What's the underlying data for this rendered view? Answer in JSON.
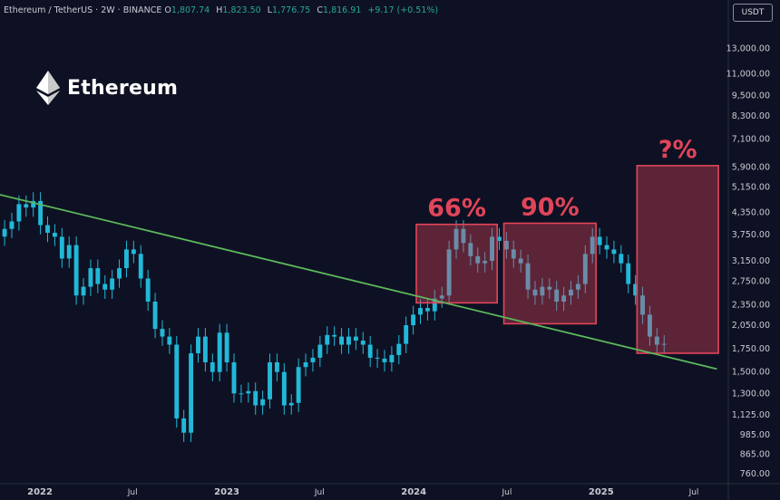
{
  "header": {
    "symbol": "Ethereum / TetherUS · 2W · BINANCE",
    "open_label": "O",
    "open": "1,807.74",
    "high_label": "H",
    "high": "1,823.50",
    "low_label": "L",
    "low": "1,776.75",
    "close_label": "C",
    "close": "1,816.91",
    "change": "+9.17 (+0.51%)"
  },
  "currency_button": "USDT",
  "brand": {
    "name": "Ethereum",
    "icon": "ethereum-logo-icon"
  },
  "colors": {
    "background": "#0e1123",
    "candle": "#22b8d8",
    "trendline": "#5cb85c",
    "highlight": "#e0455a"
  },
  "chart_data": {
    "type": "candlestick",
    "y_scale": "log",
    "ylim": [
      720,
      15000
    ],
    "x_range": [
      "2021-10-15",
      "2025-09-01"
    ],
    "y_ticks": [
      "13,000.00",
      "11,000.00",
      "9,500.00",
      "8,300.00",
      "7,100.00",
      "5,900.00",
      "5,150.00",
      "4,350.00",
      "3,750.00",
      "3,150.00",
      "2,750.00",
      "2,350.00",
      "2,050.00",
      "1,750.00",
      "1,500.00",
      "1,300.00",
      "1,125.00",
      "985.00",
      "865.00",
      "760.00"
    ],
    "x_ticks": [
      {
        "date": "2022-01-01",
        "label": "2022",
        "bold": true
      },
      {
        "date": "2022-07-01",
        "label": "Jul",
        "bold": false
      },
      {
        "date": "2023-01-01",
        "label": "2023",
        "bold": true
      },
      {
        "date": "2023-07-01",
        "label": "Jul",
        "bold": false
      },
      {
        "date": "2024-01-01",
        "label": "2024",
        "bold": true
      },
      {
        "date": "2024-07-01",
        "label": "Jul",
        "bold": false
      },
      {
        "date": "2025-01-01",
        "label": "2025",
        "bold": true
      },
      {
        "date": "2025-07-01",
        "label": "Jul",
        "bold": false
      }
    ],
    "start_date": "2021-10-17",
    "interval_days": 14,
    "closes": [
      3900,
      4100,
      4600,
      4500,
      4700,
      4000,
      3800,
      3700,
      3200,
      3500,
      2500,
      2650,
      3000,
      2700,
      2600,
      2800,
      3000,
      3400,
      3300,
      2800,
      2400,
      2000,
      1900,
      1800,
      1100,
      1000,
      1700,
      1900,
      1600,
      1500,
      1950,
      1600,
      1300,
      1300,
      1320,
      1200,
      1250,
      1600,
      1500,
      1200,
      1220,
      1550,
      1600,
      1650,
      1800,
      1920,
      1900,
      1800,
      1900,
      1850,
      1800,
      1650,
      1640,
      1600,
      1680,
      1810,
      2050,
      2200,
      2300,
      2250,
      2450,
      2500,
      3400,
      3900,
      3550,
      3250,
      3100,
      3150,
      3700,
      3600,
      3400,
      3200,
      3100,
      2600,
      2500,
      2650,
      2600,
      2400,
      2500,
      2600,
      2700,
      3300,
      3700,
      3500,
      3400,
      3300,
      3100,
      2700,
      2500,
      2200,
      1900,
      1800,
      1810
    ],
    "annotations": [
      {
        "label": "66%",
        "x_start": "2024-01-06",
        "x_end": "2024-06-12",
        "y_low": 2380,
        "y_high": 4020
      },
      {
        "label": "90%",
        "x_start": "2024-06-25",
        "x_end": "2024-12-22",
        "y_low": 2070,
        "y_high": 4050
      },
      {
        "label": "?%",
        "x_start": "2025-03-12",
        "x_end": "2025-08-18",
        "y_low": 1700,
        "y_high": 5950
      }
    ],
    "trendline": {
      "from": {
        "date": "2021-10-15",
        "value": 4900
      },
      "to": {
        "date": "2025-08-15",
        "value": 1530
      }
    }
  }
}
